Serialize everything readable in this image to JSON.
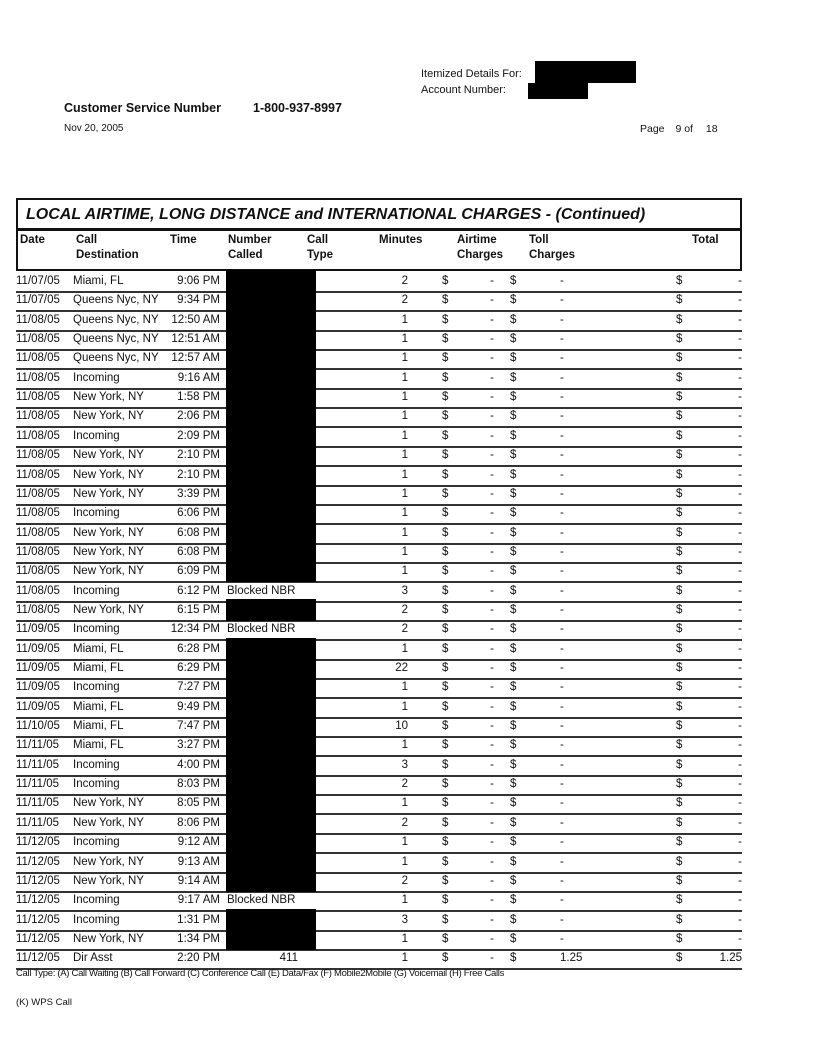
{
  "header": {
    "itemized_label": "Itemized Details For:",
    "account_label": "Account Number:",
    "cs_label": "Customer Service Number",
    "cs_number": "1-800-937-8997",
    "date": "Nov 20, 2005",
    "page_label": "Page",
    "page_num": "9",
    "page_of": "of",
    "page_total": "18"
  },
  "section_title": "LOCAL AIRTIME, LONG DISTANCE and INTERNATIONAL CHARGES  - (Continued)",
  "columns": {
    "date": "Date",
    "dest1": "Call",
    "dest2": "Destination",
    "time": "Time",
    "num1": "Number",
    "num2": "Called",
    "type1": "Call",
    "type2": "Type",
    "minutes": "Minutes",
    "air1": "Airtime",
    "air2": "Charges",
    "toll1": "Toll",
    "toll2": "Charges",
    "total": "Total"
  },
  "currency": "$",
  "rows": [
    [
      "11/07/05",
      "Miami, FL",
      "9:06 PM",
      null,
      "2",
      "-",
      "-",
      "-"
    ],
    [
      "11/07/05",
      "Queens Nyc, NY",
      "9:34 PM",
      null,
      "2",
      "-",
      "-",
      "-"
    ],
    [
      "11/08/05",
      "Queens Nyc, NY",
      "12:50 AM",
      null,
      "1",
      "-",
      "-",
      "-"
    ],
    [
      "11/08/05",
      "Queens Nyc, NY",
      "12:51 AM",
      null,
      "1",
      "-",
      "-",
      "-"
    ],
    [
      "11/08/05",
      "Queens Nyc, NY",
      "12:57 AM",
      null,
      "1",
      "-",
      "-",
      "-"
    ],
    [
      "11/08/05",
      "Incoming",
      "9:16 AM",
      null,
      "1",
      "-",
      "-",
      "-"
    ],
    [
      "11/08/05",
      "New York, NY",
      "1:58 PM",
      null,
      "1",
      "-",
      "-",
      "-"
    ],
    [
      "11/08/05",
      "New York, NY",
      "2:06 PM",
      null,
      "1",
      "-",
      "-",
      "-"
    ],
    [
      "11/08/05",
      "Incoming",
      "2:09 PM",
      null,
      "1",
      "-",
      "-",
      "-"
    ],
    [
      "11/08/05",
      "New York, NY",
      "2:10 PM",
      null,
      "1",
      "-",
      "-",
      "-"
    ],
    [
      "11/08/05",
      "New York, NY",
      "2:10 PM",
      null,
      "1",
      "-",
      "-",
      "-"
    ],
    [
      "11/08/05",
      "New York, NY",
      "3:39 PM",
      null,
      "1",
      "-",
      "-",
      "-"
    ],
    [
      "11/08/05",
      "Incoming",
      "6:06 PM",
      null,
      "1",
      "-",
      "-",
      "-"
    ],
    [
      "11/08/05",
      "New York, NY",
      "6:08 PM",
      null,
      "1",
      "-",
      "-",
      "-"
    ],
    [
      "11/08/05",
      "New York, NY",
      "6:08 PM",
      null,
      "1",
      "-",
      "-",
      "-"
    ],
    [
      "11/08/05",
      "New York, NY",
      "6:09 PM",
      null,
      "1",
      "-",
      "-",
      "-"
    ],
    [
      "11/08/05",
      "Incoming",
      "6:12 PM",
      "Blocked NBR",
      "3",
      "-",
      "-",
      "-"
    ],
    [
      "11/08/05",
      "New York, NY",
      "6:15 PM",
      null,
      "2",
      "-",
      "-",
      "-"
    ],
    [
      "11/09/05",
      "Incoming",
      "12:34 PM",
      "Blocked NBR",
      "2",
      "-",
      "-",
      "-"
    ],
    [
      "11/09/05",
      "Miami, FL",
      "6:28 PM",
      null,
      "1",
      "-",
      "-",
      "-"
    ],
    [
      "11/09/05",
      "Miami, FL",
      "6:29 PM",
      null,
      "22",
      "-",
      "-",
      "-"
    ],
    [
      "11/09/05",
      "Incoming",
      "7:27 PM",
      null,
      "1",
      "-",
      "-",
      "-"
    ],
    [
      "11/09/05",
      "Miami, FL",
      "9:49 PM",
      null,
      "1",
      "-",
      "-",
      "-"
    ],
    [
      "11/10/05",
      "Miami, FL",
      "7:47 PM",
      null,
      "10",
      "-",
      "-",
      "-"
    ],
    [
      "11/11/05",
      "Miami, FL",
      "3:27 PM",
      null,
      "1",
      "-",
      "-",
      "-"
    ],
    [
      "11/11/05",
      "Incoming",
      "4:00 PM",
      null,
      "3",
      "-",
      "-",
      "-"
    ],
    [
      "11/11/05",
      "Incoming",
      "8:03 PM",
      null,
      "2",
      "-",
      "-",
      "-"
    ],
    [
      "11/11/05",
      "New York, NY",
      "8:05 PM",
      null,
      "1",
      "-",
      "-",
      "-"
    ],
    [
      "11/11/05",
      "New York, NY",
      "8:06 PM",
      null,
      "2",
      "-",
      "-",
      "-"
    ],
    [
      "11/12/05",
      "Incoming",
      "9:12 AM",
      null,
      "1",
      "-",
      "-",
      "-"
    ],
    [
      "11/12/05",
      "New York, NY",
      "9:13 AM",
      null,
      "1",
      "-",
      "-",
      "-"
    ],
    [
      "11/12/05",
      "New York, NY",
      "9:14 AM",
      null,
      "2",
      "-",
      "-",
      "-"
    ],
    [
      "11/12/05",
      "Incoming",
      "9:17 AM",
      "Blocked NBR",
      "1",
      "-",
      "-",
      "-"
    ],
    [
      "11/12/05",
      "Incoming",
      "1:31 PM",
      null,
      "3",
      "-",
      "-",
      "-"
    ],
    [
      "11/12/05",
      "New York, NY",
      "1:34 PM",
      null,
      "1",
      "-",
      "-",
      "-"
    ],
    [
      "11/12/05",
      "Dir Asst",
      "2:20 PM",
      "411",
      "1",
      "-",
      "1.25",
      "1.25"
    ]
  ],
  "footer": {
    "legend1": "Call Type: (A) Call Waiting (B) Call Forward (C) Conference Call (E) Data/Fax (F) Mobile2Mobile (G) Voicemail (H) Free Calls",
    "legend2": "(K) WPS Call"
  }
}
